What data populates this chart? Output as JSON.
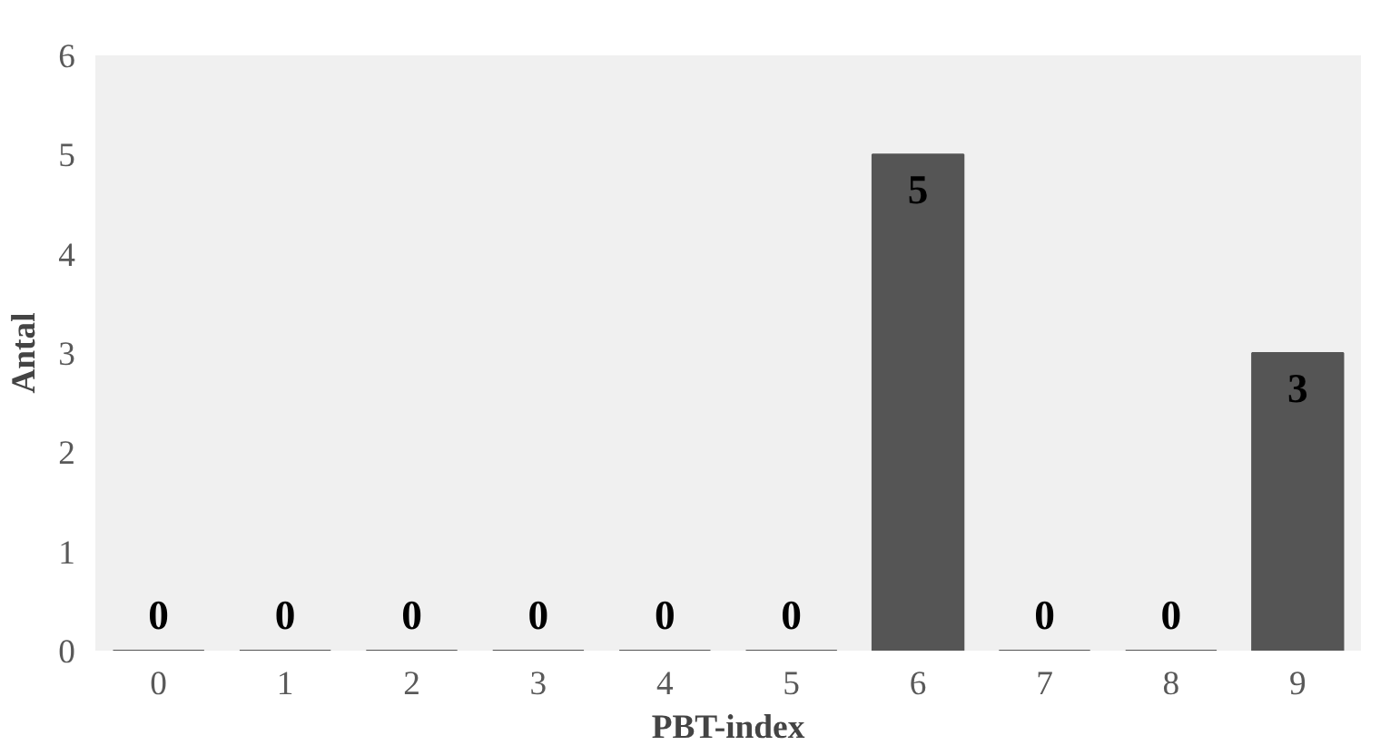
{
  "chart_data": {
    "type": "bar",
    "xlabel": "PBT-index",
    "ylabel": "Antal",
    "categories": [
      "0",
      "1",
      "2",
      "3",
      "4",
      "5",
      "6",
      "7",
      "8",
      "9"
    ],
    "values": [
      0,
      0,
      0,
      0,
      0,
      0,
      5,
      0,
      0,
      3
    ],
    "color": "#555555",
    "ylim": [
      0,
      6
    ],
    "yticks": [
      0,
      1,
      2,
      3,
      4,
      5,
      6
    ],
    "data_labels": true,
    "grid": false
  }
}
